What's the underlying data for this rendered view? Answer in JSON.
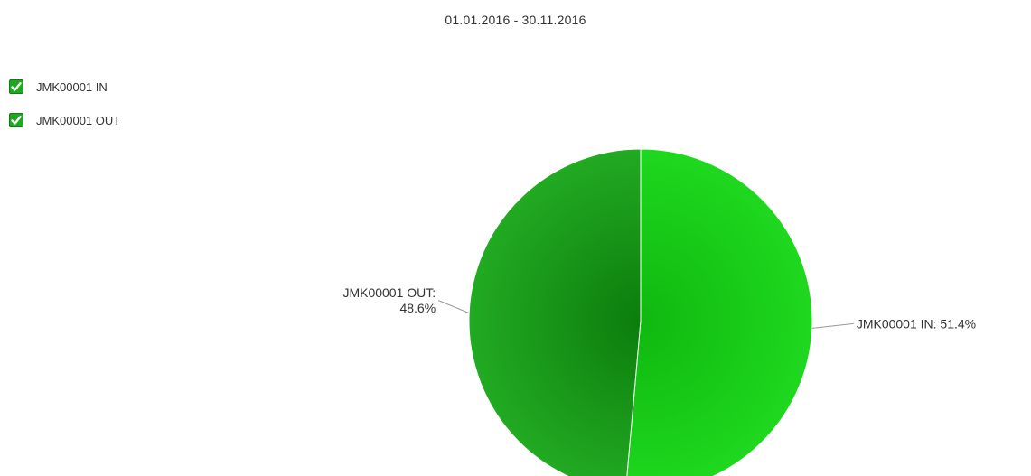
{
  "chart_data": {
    "type": "pie",
    "title": "01.01.2016 - 30.11.2016",
    "legend_position": "top-left",
    "series": [
      {
        "name": "JMK00001 IN",
        "value": 51.4,
        "label_lines": [
          "JMK00001 IN: 51.4%"
        ],
        "color": "#1ed81e",
        "color_center": "#10b810"
      },
      {
        "name": "JMK00001 OUT",
        "value": 48.6,
        "label_lines": [
          "JMK00001 OUT:",
          "48.6%"
        ],
        "color": "#22aa22",
        "color_center": "#0c7d0c"
      }
    ]
  },
  "legend": {
    "check_color": "#1ea81e",
    "items": [
      {
        "label": "JMK00001 IN",
        "checked": true
      },
      {
        "label": "JMK00001 OUT",
        "checked": true
      }
    ]
  }
}
